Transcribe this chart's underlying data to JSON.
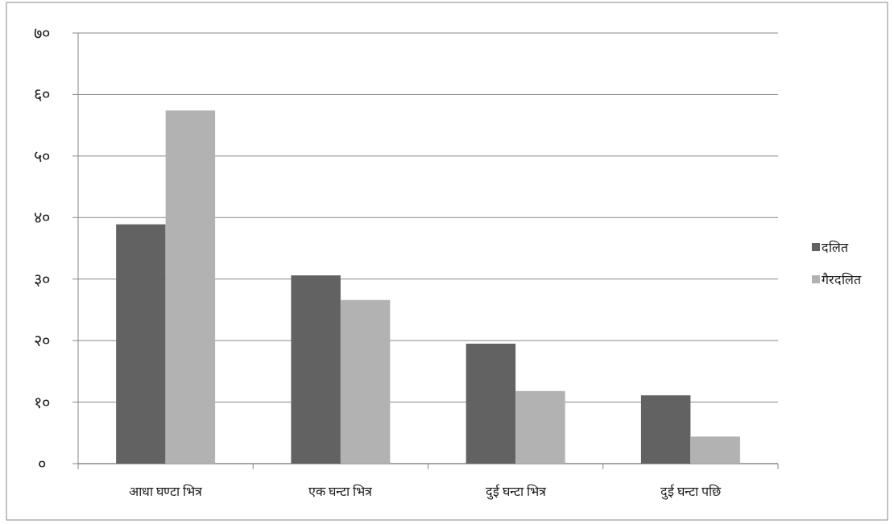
{
  "chart_data": {
    "type": "bar",
    "categories": [
      "आधा घण्टा भित्र",
      "एक घन्टा भित्र",
      "दुई घन्टा भित्र",
      "दुई घन्टा पछि"
    ],
    "series": [
      {
        "name": "दलित",
        "color": "#626262",
        "values": [
          38.9,
          30.6,
          19.5,
          11.1
        ]
      },
      {
        "name": "गैरदलित",
        "color": "#b2b2b2",
        "values": [
          57.4,
          26.6,
          11.8,
          4.4
        ]
      }
    ],
    "ylim": [
      0,
      70
    ],
    "yticks": [
      {
        "value": 0,
        "label": "०"
      },
      {
        "value": 10,
        "label": "१०"
      },
      {
        "value": 20,
        "label": "२०"
      },
      {
        "value": 30,
        "label": "३०"
      },
      {
        "value": 40,
        "label": "४०"
      },
      {
        "value": 50,
        "label": "५०"
      },
      {
        "value": 60,
        "label": "६०"
      },
      {
        "value": 70,
        "label": "७०"
      }
    ],
    "grid": "y",
    "legend": "right"
  }
}
